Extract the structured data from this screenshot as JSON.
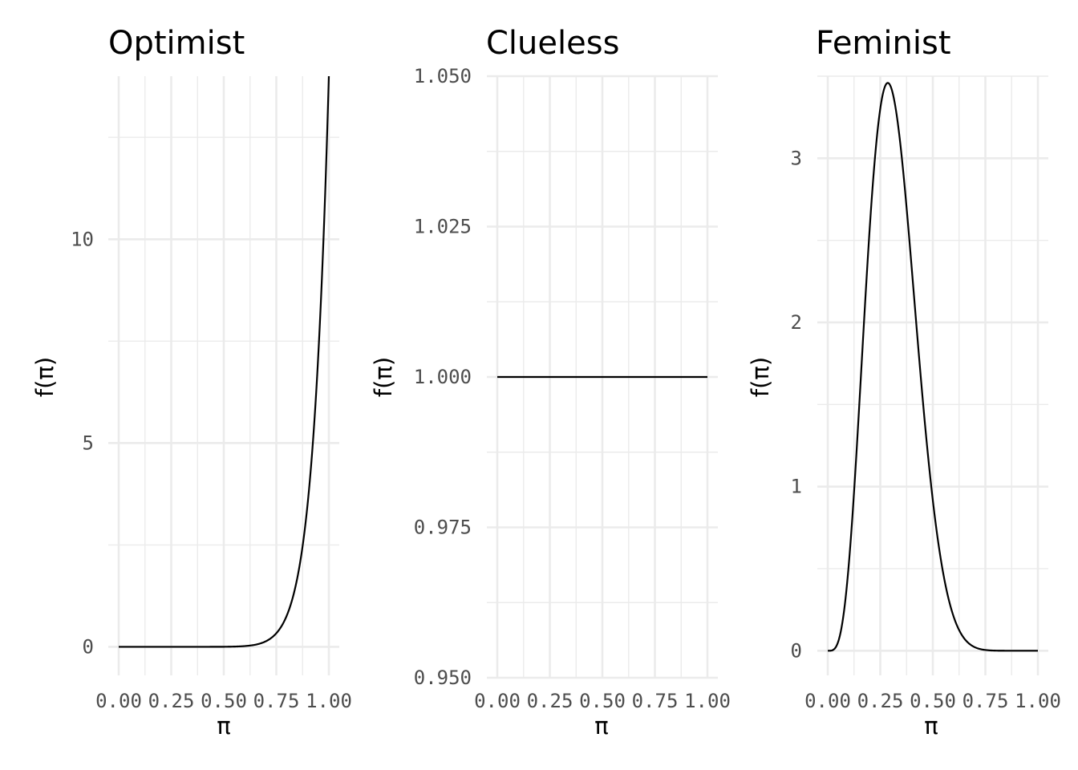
{
  "chart_data": [
    {
      "type": "line",
      "title": "Optimist",
      "xlabel": "π",
      "ylabel": "f(π)",
      "distribution": {
        "family": "beta",
        "alpha": 14,
        "beta": 1
      },
      "xlim": [
        0,
        1
      ],
      "ylim": [
        -0.7,
        14
      ],
      "x_ticks": [
        0,
        0.25,
        0.5,
        0.75,
        1
      ],
      "x_tick_labels": [
        "0.00",
        "0.25",
        "0.50",
        "0.75",
        "1.00"
      ],
      "y_ticks": [
        0,
        5,
        10
      ],
      "y_tick_labels": [
        "0",
        "5",
        "10"
      ],
      "x": [
        0,
        0.1,
        0.2,
        0.3,
        0.4,
        0.5,
        0.6,
        0.65,
        0.7,
        0.75,
        0.8,
        0.85,
        0.9,
        0.95,
        1.0
      ],
      "y": [
        0,
        0,
        0,
        0,
        0,
        0.0017,
        0.018,
        0.052,
        0.135,
        0.33,
        0.77,
        1.7,
        3.57,
        7.13,
        14.0
      ],
      "grid": true
    },
    {
      "type": "line",
      "title": "Clueless",
      "xlabel": "π",
      "ylabel": "f(π)",
      "distribution": {
        "family": "beta",
        "alpha": 1,
        "beta": 1
      },
      "xlim": [
        0,
        1
      ],
      "ylim": [
        0.95,
        1.05
      ],
      "x_ticks": [
        0,
        0.25,
        0.5,
        0.75,
        1
      ],
      "x_tick_labels": [
        "0.00",
        "0.25",
        "0.50",
        "0.75",
        "1.00"
      ],
      "y_ticks": [
        0.95,
        0.975,
        1.0,
        1.025,
        1.05
      ],
      "y_tick_labels": [
        "0.950",
        "0.975",
        "1.000",
        "1.025",
        "1.050"
      ],
      "x": [
        0,
        0.25,
        0.5,
        0.75,
        1.0
      ],
      "y": [
        1,
        1,
        1,
        1,
        1
      ],
      "grid": true
    },
    {
      "type": "line",
      "title": "Feminist",
      "xlabel": "π",
      "ylabel": "f(π)",
      "distribution": {
        "family": "beta",
        "alpha": 5,
        "beta": 11
      },
      "xlim": [
        0,
        1
      ],
      "ylim": [
        -0.15,
        3.5
      ],
      "x_ticks": [
        0,
        0.25,
        0.5,
        0.75,
        1
      ],
      "x_tick_labels": [
        "0.00",
        "0.25",
        "0.50",
        "0.75",
        "1.00"
      ],
      "y_ticks": [
        0,
        1,
        2,
        3
      ],
      "y_tick_labels": [
        "0",
        "1",
        "2",
        "3"
      ],
      "x": [
        0,
        0.05,
        0.1,
        0.15,
        0.2,
        0.25,
        0.27,
        0.3,
        0.35,
        0.4,
        0.45,
        0.5,
        0.55,
        0.6,
        0.7,
        0.8,
        1.0
      ],
      "y": [
        0,
        0.08,
        0.7,
        1.78,
        2.75,
        3.3,
        3.44,
        3.35,
        2.98,
        2.23,
        1.45,
        0.81,
        0.39,
        0.16,
        0.02,
        0.001,
        0
      ],
      "grid": true
    }
  ]
}
